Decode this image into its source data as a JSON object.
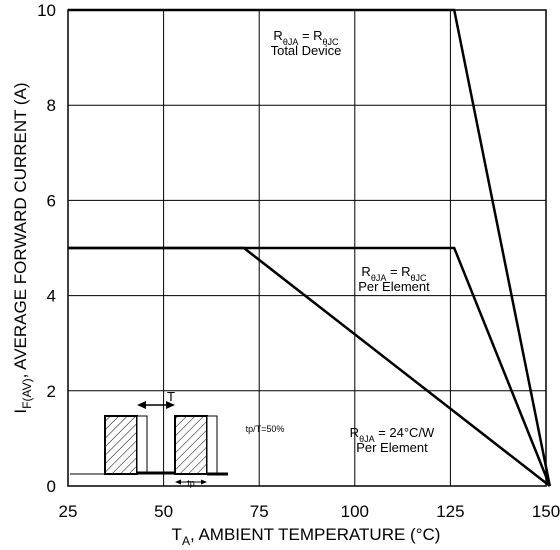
{
  "chart_data": {
    "type": "line",
    "title": "",
    "xlabel": "T_A, AMBIENT TEMPERATURE (°C)",
    "xlabel_parts": {
      "main": "T",
      "sub": "A",
      "rest": ", AMBIENT TEMPERATURE (°C)"
    },
    "ylabel": "I_F(AV), AVERAGE FORWARD CURRENT (A)",
    "ylabel_parts": {
      "main": "I",
      "sub": "F(AV)",
      "rest": ", AVERAGE FORWARD CURRENT (A)"
    },
    "xlim": [
      25,
      150
    ],
    "ylim": [
      0,
      10
    ],
    "x_ticks": [
      25,
      50,
      75,
      100,
      125,
      150
    ],
    "y_ticks": [
      0,
      2,
      4,
      6,
      8,
      10
    ],
    "grid": true,
    "legend": "none",
    "series": [
      {
        "x": [
          25,
          126,
          151
        ],
        "y": [
          10,
          10,
          0
        ]
      },
      {
        "x": [
          25,
          126,
          151
        ],
        "y": [
          5,
          5,
          0
        ]
      },
      {
        "x": [
          25,
          71,
          151
        ],
        "y": [
          5,
          5,
          0
        ]
      }
    ],
    "annotations": [
      {
        "lines": [
          [
            {
              "t": "R"
            },
            {
              "t": "θJA",
              "sub": true
            },
            {
              "t": " = R"
            },
            {
              "t": "θJC",
              "sub": true
            }
          ],
          [
            {
              "t": "Total Device"
            }
          ]
        ]
      },
      {
        "lines": [
          [
            {
              "t": "R"
            },
            {
              "t": "θJA",
              "sub": true
            },
            {
              "t": " = R"
            },
            {
              "t": "θJC",
              "sub": true
            }
          ],
          [
            {
              "t": "Per Element"
            }
          ]
        ]
      },
      {
        "lines": [
          [
            {
              "t": "R"
            },
            {
              "t": "θJA",
              "sub": true
            },
            {
              "t": " = 24°C/W"
            }
          ],
          [
            {
              "t": "Per Element"
            }
          ]
        ]
      }
    ],
    "inset": {
      "period_label": "T",
      "pulse_label": "tp",
      "duty_label": "tp/T=50%"
    }
  }
}
